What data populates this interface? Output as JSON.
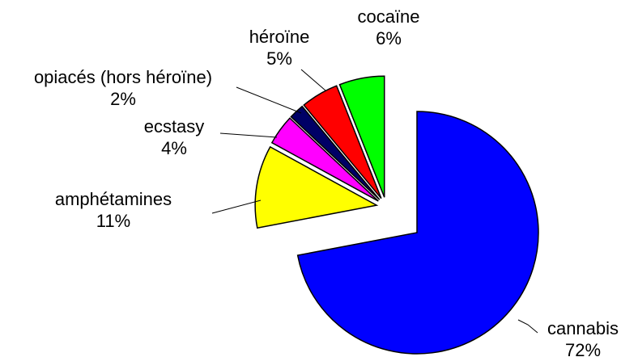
{
  "chart_data": {
    "type": "pie",
    "categories": [
      "cannabis",
      "amphétamines",
      "ecstasy",
      "opiacés (hors héroïne)",
      "héroïne",
      "cocaïne"
    ],
    "values": [
      72,
      11,
      4,
      2,
      5,
      6
    ],
    "value_labels": [
      "72%",
      "11%",
      "4%",
      "2%",
      "5%",
      "6%"
    ],
    "colors": [
      "#0000ff",
      "#ffff00",
      "#ff00ff",
      "#000066",
      "#ff0000",
      "#00ff00"
    ]
  }
}
